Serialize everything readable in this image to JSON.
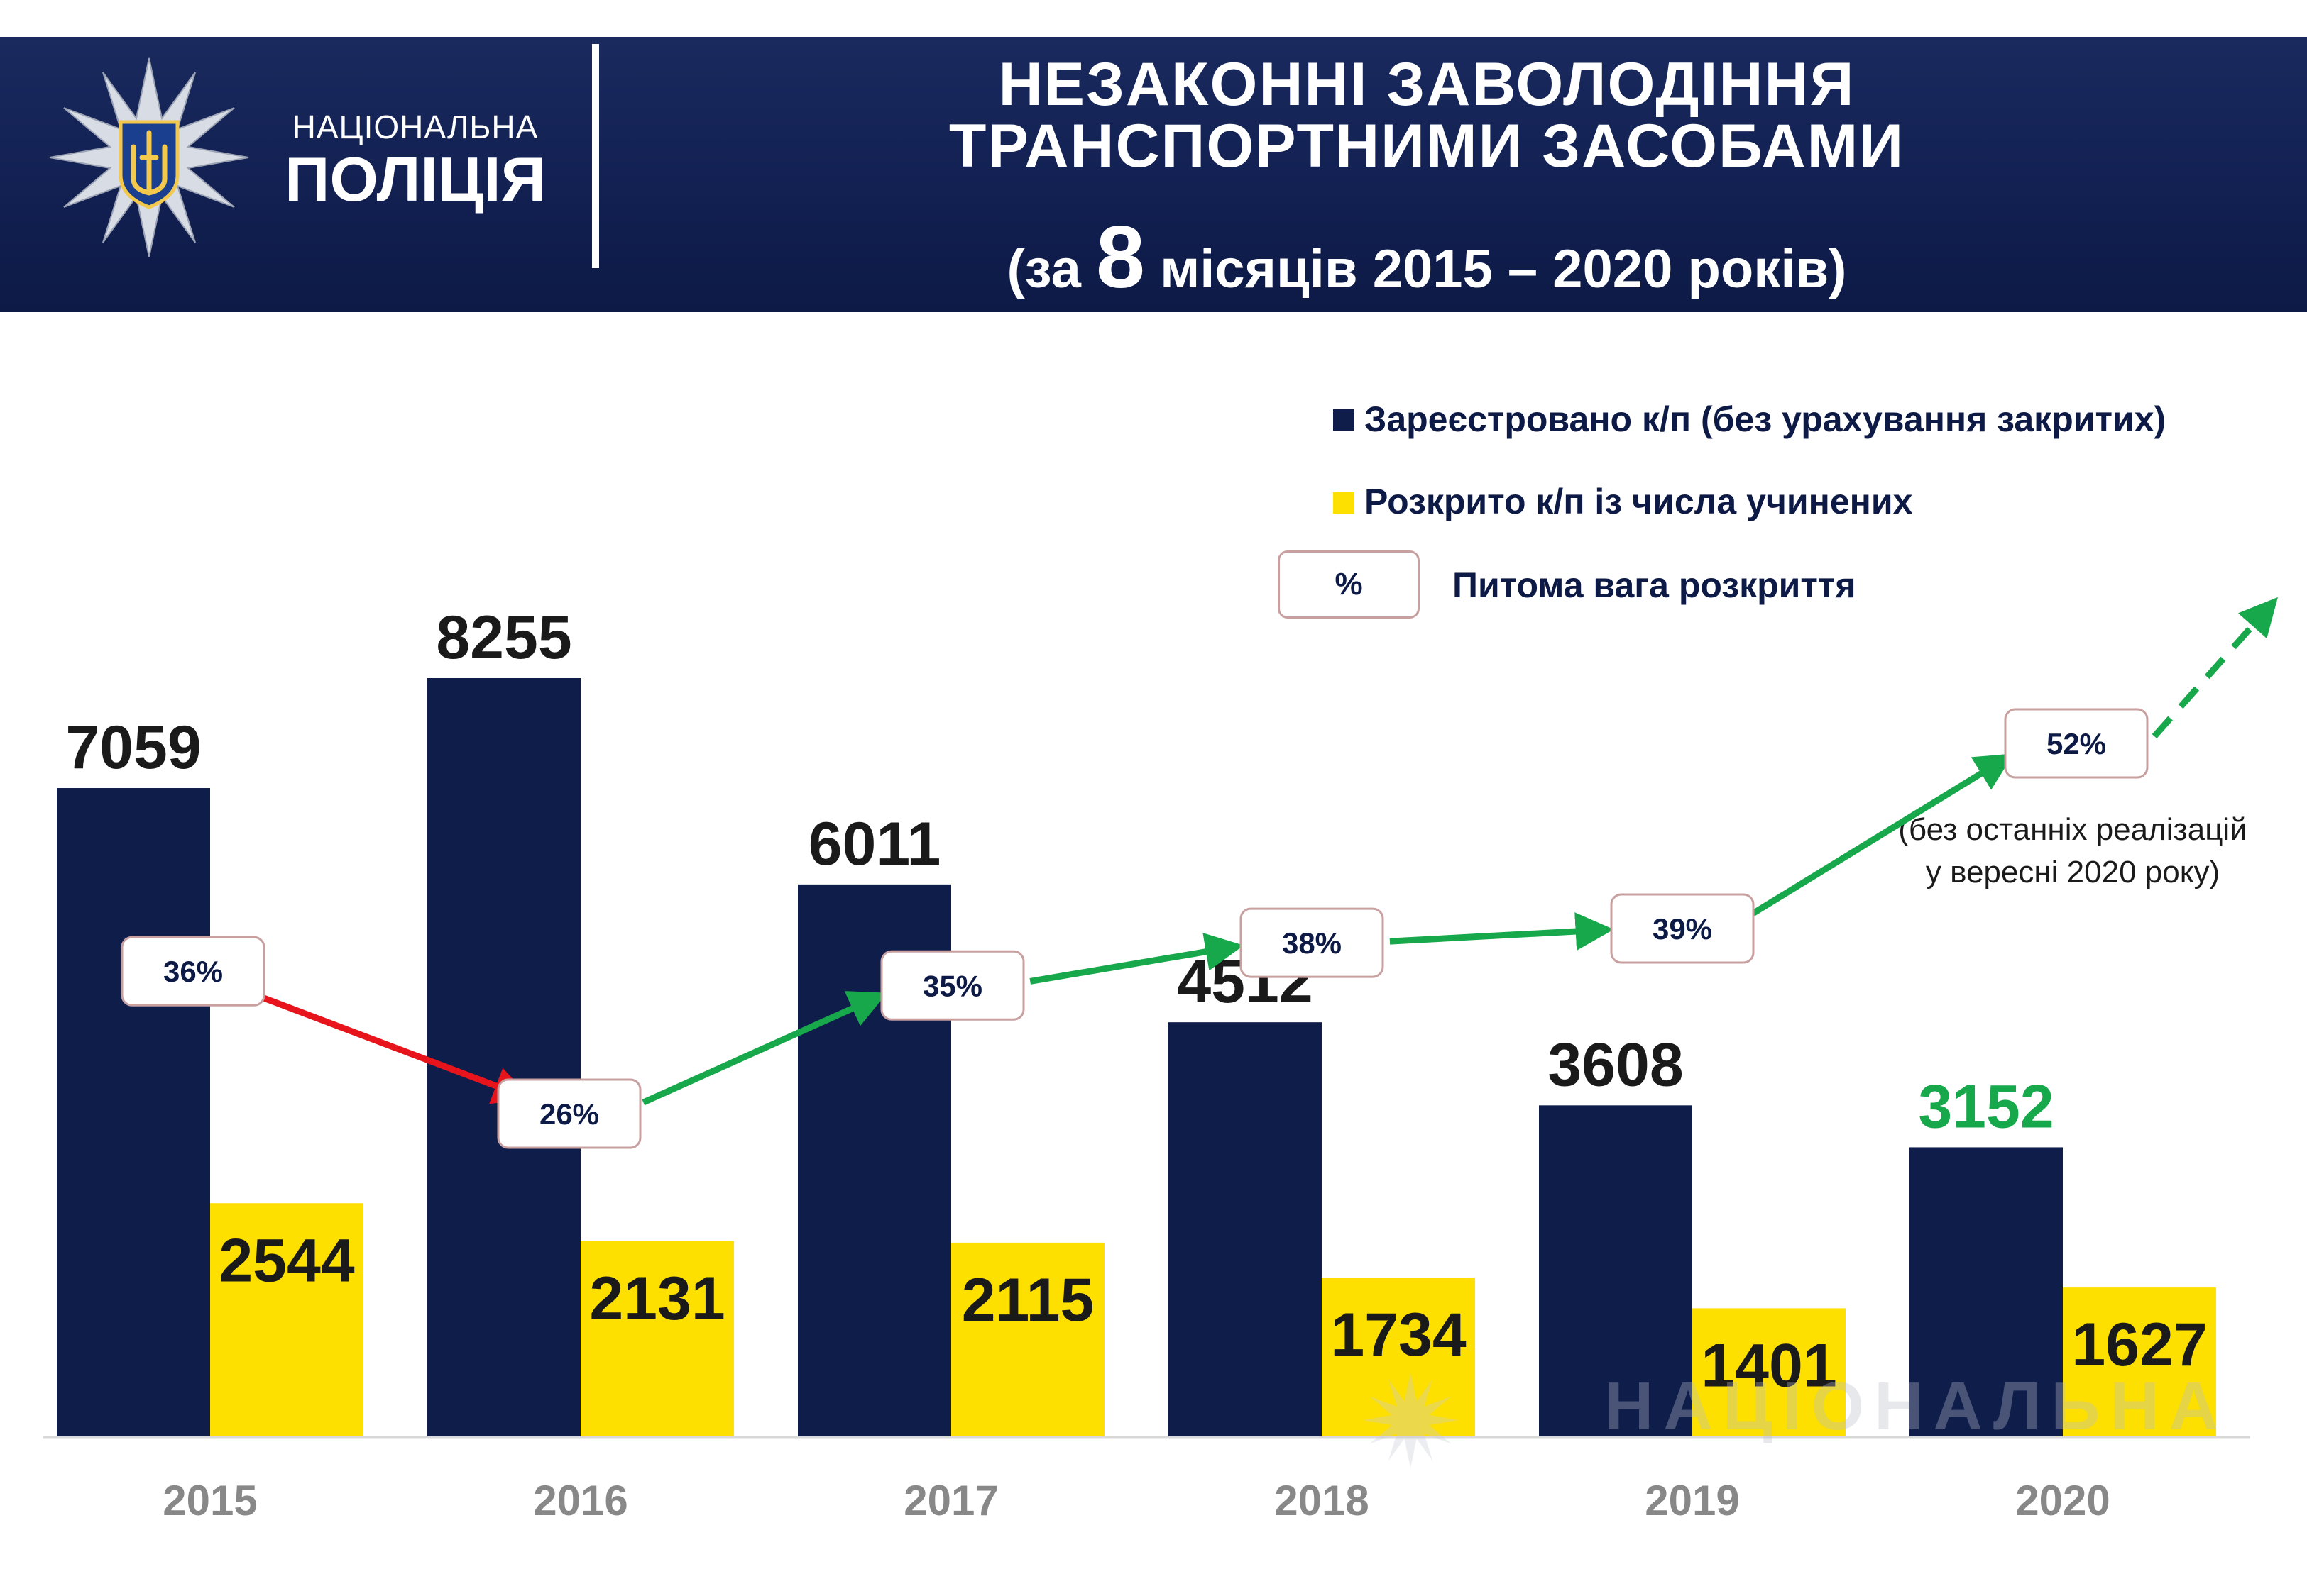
{
  "header": {
    "brand_line1": "НАЦІОНАЛЬНА",
    "brand_line2": "ПОЛІЦІЯ",
    "title_line1": "НЕЗАКОННІ ЗАВОЛОДІННЯ",
    "title_line2": "ТРАНСПОРТНИМИ ЗАСОБАМИ",
    "subtitle_pre": "(за",
    "subtitle_num": "8",
    "subtitle_post": "місяців 2015 – 2020 років)"
  },
  "legend": {
    "registered": "Зареєстровано к/п (без урахування закритих)",
    "solved": "Розкрито к/п із числа учинених",
    "pct_symbol": "%",
    "pct_label": "Питома вага розкриття"
  },
  "note": {
    "line1": "(без останніх реалізацій",
    "line2": "у вересні 2020 року)"
  },
  "watermark": "НАЦІОНАЛЬНА",
  "colors": {
    "navy": "#0f1d4a",
    "yellow": "#fde000",
    "green": "#17a84b",
    "red": "#e8141b",
    "label_grey": "#888888"
  },
  "chart_data": {
    "type": "bar",
    "categories": [
      "2015",
      "2016",
      "2017",
      "2018",
      "2019",
      "2020"
    ],
    "series": [
      {
        "name": "Зареєстровано к/п (без урахування закритих)",
        "values": [
          7059,
          8255,
          6011,
          4512,
          3608,
          3152
        ]
      },
      {
        "name": "Розкрито к/п із числа учинених",
        "values": [
          2544,
          2131,
          2115,
          1734,
          1401,
          1627
        ]
      }
    ],
    "registered_labels": [
      "7059",
      "8255",
      "6011",
      "4512",
      "3608",
      "3152"
    ],
    "solved_labels": [
      "2544",
      "2131",
      "2115",
      "1734",
      "1401",
      "1627"
    ],
    "solve_rate": {
      "name": "Питома вага розкриття",
      "values": [
        36,
        26,
        35,
        38,
        39,
        52
      ],
      "labels": [
        "36%",
        "26%",
        "35%",
        "38%",
        "39%",
        "52%"
      ]
    },
    "highlight_last_registered": true
  }
}
